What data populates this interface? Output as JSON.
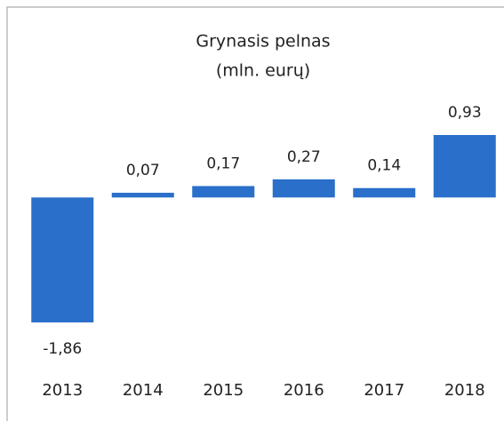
{
  "chart_data": {
    "type": "bar",
    "title": "Grynasis pelnas",
    "subtitle": "(mln. eurų)",
    "categories": [
      "2013",
      "2014",
      "2015",
      "2016",
      "2017",
      "2018"
    ],
    "values": [
      -1.86,
      0.07,
      0.17,
      0.27,
      0.14,
      0.93
    ],
    "value_labels": [
      "-1,86",
      "0,07",
      "0,17",
      "0,27",
      "0,14",
      "0,93"
    ],
    "color": "#2a6fc9"
  }
}
